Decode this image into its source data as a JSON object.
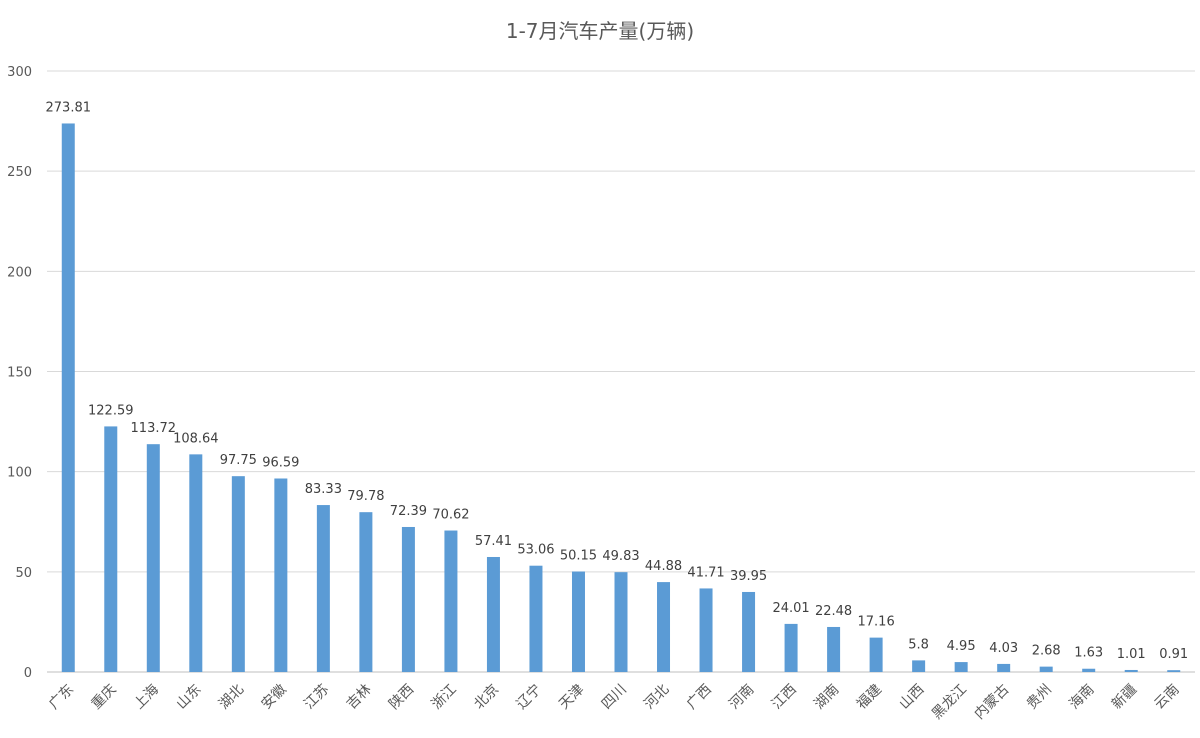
{
  "chart_data": {
    "type": "bar",
    "title": "1-7月汽车产量(万辆)",
    "xlabel": "",
    "ylabel": "",
    "ylim": [
      0,
      300
    ],
    "yticks": [
      0,
      50,
      100,
      150,
      200,
      250,
      300
    ],
    "grid": true,
    "legend": "none",
    "bar_color": "#5b9bd5",
    "categories": [
      "广东",
      "重庆",
      "上海",
      "山东",
      "湖北",
      "安徽",
      "江苏",
      "吉林",
      "陕西",
      "浙江",
      "北京",
      "辽宁",
      "天津",
      "四川",
      "河北",
      "广西",
      "河南",
      "江西",
      "湖南",
      "福建",
      "山西",
      "黑龙江",
      "内蒙古",
      "贵州",
      "海南",
      "新疆",
      "云南"
    ],
    "values": [
      273.81,
      122.59,
      113.72,
      108.64,
      97.75,
      96.59,
      83.33,
      79.78,
      72.39,
      70.62,
      57.41,
      53.06,
      50.15,
      49.83,
      44.88,
      41.71,
      39.95,
      24.01,
      22.48,
      17.16,
      5.8,
      4.95,
      4.03,
      2.68,
      1.63,
      1.01,
      0.91
    ],
    "data_labels": [
      "273.81",
      "122.59",
      "113.72",
      "108.64",
      "97.75",
      "96.59",
      "83.33",
      "79.78",
      "72.39",
      "70.62",
      "57.41",
      "53.06",
      "50.15",
      "49.83",
      "44.88",
      "41.71",
      "39.95",
      "24.01",
      "22.48",
      "17.16",
      "5.8",
      "4.95",
      "4.03",
      "2.68",
      "1.63",
      "1.01",
      "0.91"
    ]
  }
}
